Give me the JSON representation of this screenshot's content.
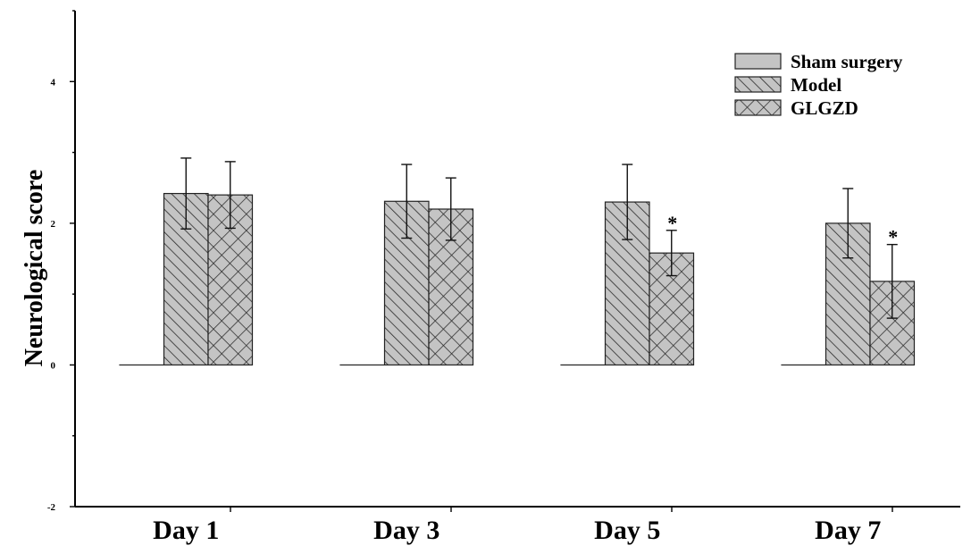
{
  "chart_data": {
    "type": "bar",
    "title": "",
    "xlabel": "",
    "ylabel": "Neurological score",
    "ylim": [
      -2,
      5
    ],
    "yticks": [
      -2,
      0,
      2,
      4
    ],
    "grid": false,
    "legend_position": "top-right",
    "categories": [
      "Day 1",
      "Day 3",
      "Day 5",
      "Day 7"
    ],
    "series": [
      {
        "name": "Sham surgery",
        "pattern": "solid",
        "values": [
          0,
          0,
          0,
          0
        ],
        "errors": [
          0,
          0,
          0,
          0
        ],
        "color": "#c0c0c0"
      },
      {
        "name": "Model",
        "pattern": "diagonal",
        "values": [
          2.42,
          2.31,
          2.3,
          2.0
        ],
        "errors": [
          0.5,
          0.52,
          0.53,
          0.49
        ],
        "color": "#c0c0c0"
      },
      {
        "name": "GLGZD",
        "pattern": "crosshatch",
        "values": [
          2.4,
          2.2,
          1.58,
          1.18
        ],
        "errors": [
          0.47,
          0.44,
          0.32,
          0.52
        ],
        "color": "#c0c0c0"
      }
    ],
    "annotations": [
      {
        "category": "Day 5",
        "series": "GLGZD",
        "text": "*"
      },
      {
        "category": "Day 7",
        "series": "GLGZD",
        "text": "*"
      }
    ]
  }
}
